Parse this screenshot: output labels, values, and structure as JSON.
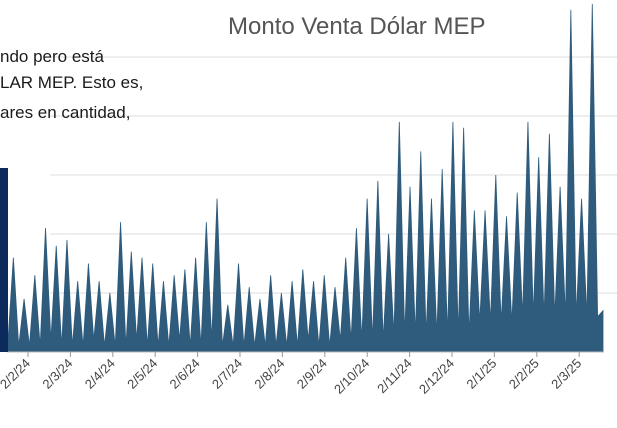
{
  "chart_data": {
    "type": "area",
    "title": "Monto Venta Dólar MEP",
    "text_lines": [
      "ndo pero está",
      "LAR MEP. Esto es,",
      "ares en cantidad,"
    ],
    "xticks": [
      "2/2/24",
      "2/3/24",
      "2/4/24",
      "2/5/24",
      "2/6/24",
      "2/7/24",
      "2/8/24",
      "2/9/24",
      "2/10/24",
      "2/11/24",
      "2/12/24",
      "2/1/25",
      "2/2/25",
      "2/3/25"
    ],
    "values": [
      0.2,
      1.6,
      0.1,
      0.9,
      0.1,
      1.3,
      0.1,
      2.1,
      0.2,
      1.8,
      0.1,
      1.9,
      0.1,
      1.2,
      0.1,
      1.5,
      0.2,
      1.2,
      0.1,
      1.0,
      0.1,
      2.2,
      0.1,
      1.7,
      0.2,
      1.6,
      0.1,
      1.5,
      0.1,
      1.2,
      0.1,
      1.3,
      0.2,
      1.4,
      0.1,
      1.6,
      0.1,
      2.2,
      0.2,
      2.6,
      0.1,
      0.8,
      0.1,
      1.5,
      0.1,
      1.1,
      0.1,
      0.9,
      0.1,
      1.3,
      0.1,
      1.0,
      0.1,
      1.2,
      0.1,
      1.4,
      0.2,
      1.2,
      0.1,
      1.3,
      0.1,
      1.1,
      0.2,
      1.6,
      0.2,
      2.1,
      0.2,
      2.6,
      0.2,
      2.9,
      0.2,
      2.0,
      0.3,
      3.9,
      0.3,
      2.8,
      0.3,
      3.4,
      0.3,
      2.6,
      0.3,
      3.1,
      0.3,
      3.9,
      0.3,
      3.8,
      0.3,
      2.4,
      0.5,
      2.4,
      0.5,
      3.0,
      0.5,
      2.3,
      0.5,
      2.7,
      0.6,
      3.9,
      0.6,
      3.3,
      0.6,
      3.7,
      0.6,
      2.8,
      0.6,
      5.8,
      0.6,
      2.6,
      0.6,
      5.9,
      0.6,
      0.7
    ],
    "color": "#2f5b7c",
    "ylim": [
      0,
      6
    ],
    "gridlines": [
      1,
      2,
      3,
      4,
      5
    ],
    "grid": true
  }
}
